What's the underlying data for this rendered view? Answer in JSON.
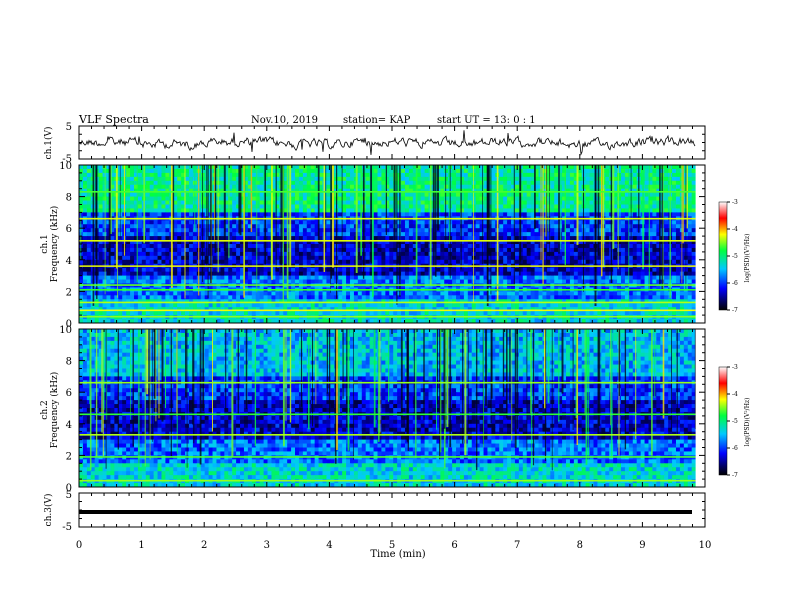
{
  "header": {
    "title": "VLF Spectra",
    "date": "Nov.10, 2019",
    "station": "station= KAP",
    "start": "start  UT =   13: 0  : 1"
  },
  "chart_data": [
    {
      "type": "line",
      "name": "ch1-waveform",
      "ylabel": "ch.1(V)",
      "ylim": [
        -5,
        5
      ],
      "yticks": [
        "5",
        "-5"
      ],
      "xlim": [
        0,
        10
      ],
      "x_end_min": 9.85,
      "description_series": "noisy waveform approximately between -2 and 2 V"
    },
    {
      "type": "heatmap",
      "name": "ch1-spectrogram",
      "ylabel": "ch.1\nFrequency  (kHz)",
      "ylim": [
        0,
        10
      ],
      "yticks": [
        "0",
        "2",
        "4",
        "6",
        "8",
        "10"
      ],
      "xlim": [
        0,
        10
      ],
      "x_end_min": 9.85,
      "colorbar": {
        "label": "log(PSD)(V²/Hz)",
        "range": [
          -7,
          -3
        ],
        "ticks": [
          "-3",
          "-4",
          "-5",
          "-6",
          "-7"
        ]
      },
      "horizontal_lines_khz": [
        0.4,
        0.8,
        1.3,
        2.1,
        2.4,
        3.6,
        5.2,
        6.6,
        8.3
      ]
    },
    {
      "type": "heatmap",
      "name": "ch2-spectrogram",
      "ylabel": "ch.2\nFrequency  (kHz)",
      "ylim": [
        0,
        10
      ],
      "yticks": [
        "0",
        "2",
        "4",
        "6",
        "8",
        "10"
      ],
      "xlim": [
        0,
        10
      ],
      "x_end_min": 9.85,
      "colorbar": {
        "label": "log(PSD)(V²/Hz)",
        "range": [
          -7,
          -3
        ],
        "ticks": [
          "-3",
          "-4",
          "-5",
          "-6",
          "-7"
        ]
      },
      "horizontal_lines_khz": [
        0.4,
        1.9,
        3.3,
        4.6,
        6.6
      ]
    },
    {
      "type": "line",
      "name": "ch3-waveform",
      "ylabel": "ch.3(V)",
      "ylim": [
        -5,
        5
      ],
      "yticks": [
        "5",
        "-5"
      ],
      "xlim": [
        0,
        10
      ],
      "x_end_min": 9.85,
      "series": [
        {
          "x": [
            0,
            9.85
          ],
          "y": [
            0,
            0
          ]
        }
      ]
    }
  ],
  "xaxis": {
    "label": "Time  (min)",
    "ticks": [
      "0",
      "1",
      "2",
      "3",
      "4",
      "5",
      "6",
      "7",
      "8",
      "9",
      "10"
    ]
  }
}
